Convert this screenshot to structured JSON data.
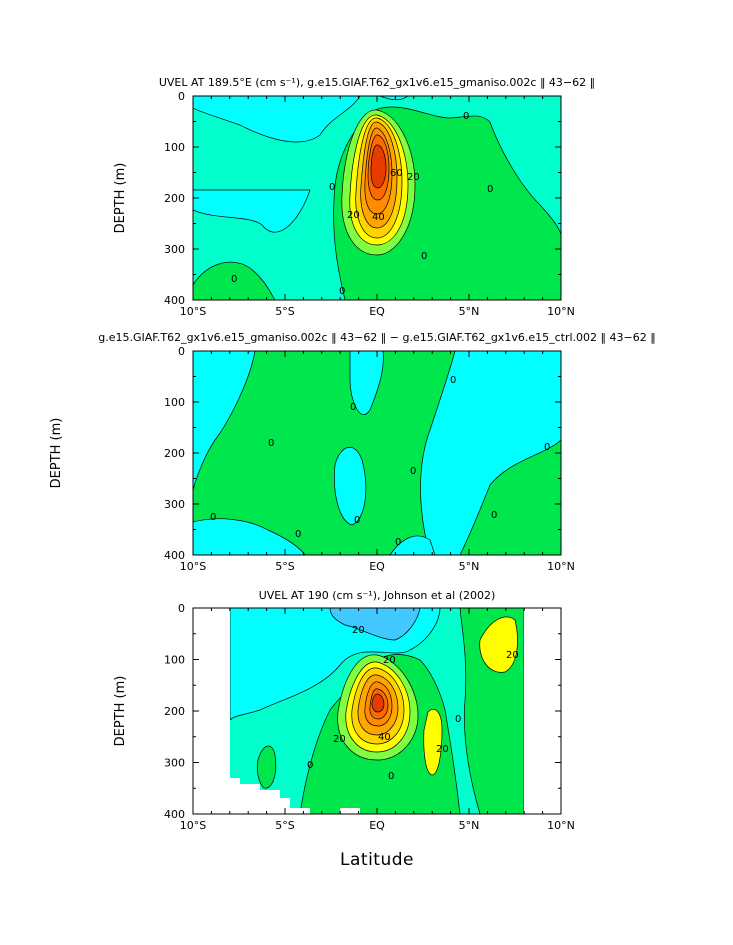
{
  "chart_data": [
    {
      "type": "heatmap",
      "title": "UVEL AT 189.5°E (cm s⁻¹), g.e15.GIAF.T62_gx1v6.e15_gmaniso.002c ‖ 43−62 ‖",
      "xlabel": "",
      "ylabel": "DEPTH (m)",
      "xlim": [
        -10,
        10
      ],
      "ylim": [
        400,
        0
      ],
      "x_ticks": [
        "10°S",
        "5°S",
        "EQ",
        "5°N",
        "10°N"
      ],
      "y_ticks": [
        "0",
        "100",
        "200",
        "300",
        "400"
      ],
      "contour_labels": [
        "0",
        "0",
        "0",
        "0",
        "0",
        "0",
        "20",
        "20",
        "40",
        "60"
      ],
      "core_max_approx": 70,
      "core_location": {
        "lat": 0,
        "depth": 150
      },
      "grid": false
    },
    {
      "type": "heatmap",
      "title": "g.e15.GIAF.T62_gx1v6.e15_gmaniso.002c ‖ 43−62 ‖ − g.e15.GIAF.T62_gx1v6.e15_ctrl.002 ‖ 43−62 ‖",
      "xlabel": "",
      "ylabel": "DEPTH (m)",
      "xlim": [
        -10,
        10
      ],
      "ylim": [
        400,
        0
      ],
      "x_ticks": [
        "10°S",
        "5°S",
        "EQ",
        "5°N",
        "10°N"
      ],
      "y_ticks": [
        "0",
        "100",
        "200",
        "300",
        "400"
      ],
      "contour_labels": [
        "0",
        "0",
        "0",
        "0",
        "0",
        "0",
        "0",
        "0",
        "0",
        "0"
      ],
      "grid": false
    },
    {
      "type": "heatmap",
      "title": "UVEL AT 190 (cm s⁻¹), Johnson et al (2002)",
      "xlabel": "Latitude",
      "ylabel": "DEPTH (m)",
      "xlim": [
        -10,
        10
      ],
      "ylim": [
        400,
        0
      ],
      "x_ticks": [
        "10°S",
        "5°S",
        "EQ",
        "5°N",
        "10°N"
      ],
      "y_ticks": [
        "0",
        "100",
        "200",
        "300",
        "400"
      ],
      "contour_labels": [
        "20",
        "20",
        "20",
        "20",
        "20",
        "40",
        "0",
        "0",
        "0"
      ],
      "core_max_approx": 80,
      "core_location": {
        "lat": 0,
        "depth": 150
      },
      "data_extent_lat": [
        -8,
        8
      ],
      "grid": false
    }
  ],
  "colors": {
    "cyan": "#00ffff",
    "teal_green": "#00ffcc",
    "green": "#00e64d",
    "lime": "#80ff40",
    "yellow": "#ffff00",
    "gold": "#ffd200",
    "orange": "#ffa500",
    "orange_red": "#ff6a00",
    "red": "#e63c00",
    "light_blue": "#40c8ff"
  }
}
